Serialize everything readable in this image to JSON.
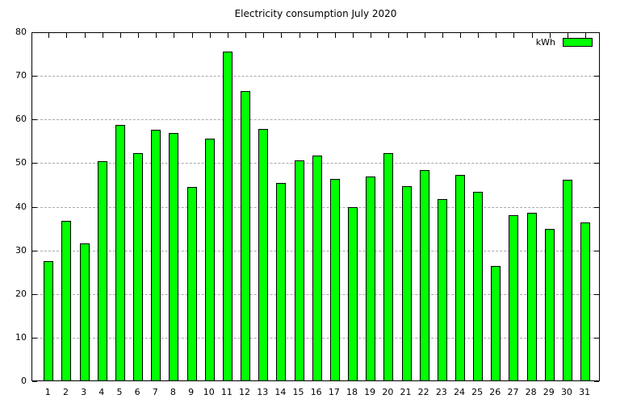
{
  "title": "Electricity consumption July 2020",
  "legend": {
    "label": "kWh",
    "swatch_color": "#00ff00"
  },
  "colors": {
    "background": "#ffffff",
    "bar_fill": "#00ff00",
    "bar_border": "#000000",
    "grid": "#a9a9a9",
    "axis": "#000000",
    "text": "#000000"
  },
  "chart_data": {
    "type": "bar",
    "title": "Electricity consumption July 2020",
    "xlabel": "",
    "ylabel": "",
    "categories": [
      1,
      2,
      3,
      4,
      5,
      6,
      7,
      8,
      9,
      10,
      11,
      12,
      13,
      14,
      15,
      16,
      17,
      18,
      19,
      20,
      21,
      22,
      23,
      24,
      25,
      26,
      27,
      28,
      29,
      30,
      31
    ],
    "series": [
      {
        "name": "kWh",
        "values": [
          27.4,
          36.6,
          31.5,
          50.3,
          58.6,
          52.1,
          57.5,
          56.7,
          44.3,
          55.4,
          75.3,
          66.3,
          57.6,
          45.3,
          50.4,
          51.5,
          46.1,
          39.8,
          46.8,
          52.1,
          44.6,
          48.3,
          41.6,
          47.1,
          43.3,
          26.3,
          37.8,
          38.5,
          34.7,
          46.0,
          36.2
        ]
      }
    ],
    "ylim": [
      0,
      80
    ],
    "yticks": [
      0,
      10,
      20,
      30,
      40,
      50,
      60,
      70,
      80
    ],
    "grid": true,
    "grid_style": "dashed",
    "legend_position": "top-right-inside"
  }
}
